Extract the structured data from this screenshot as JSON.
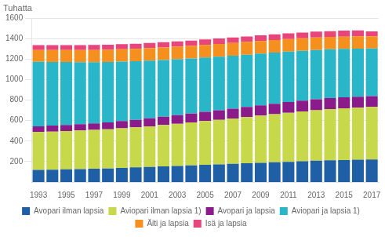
{
  "chart_data": {
    "type": "bar",
    "stacked": true,
    "ylabel": "Tuhatta",
    "categories": [
      "1993",
      null,
      "1995",
      null,
      "1997",
      null,
      "1999",
      null,
      "2001",
      null,
      "2003",
      null,
      "2005",
      null,
      "2007",
      null,
      "2009",
      null,
      "2011",
      null,
      "2013",
      null,
      "2015",
      null,
      "2017"
    ],
    "series": [
      {
        "name": "Avopari ilman lapsia",
        "color": "#1f5fa6",
        "values": [
          118,
          121,
          124,
          127,
          130,
          133,
          138,
          143,
          148,
          153,
          158,
          163,
          168,
          173,
          178,
          183,
          188,
          193,
          198,
          203,
          208,
          212,
          215,
          218,
          221
        ]
      },
      {
        "name": "Aviopari ilman lapsia 1)",
        "color": "#c8d84b",
        "values": [
          370,
          372,
          374,
          376,
          379,
          382,
          386,
          391,
          397,
          404,
          411,
          419,
          427,
          435,
          443,
          452,
          461,
          470,
          479,
          487,
          494,
          500,
          505,
          509,
          512
        ]
      },
      {
        "name": "Avopari ja lapsia",
        "color": "#8b1a8b",
        "values": [
          56,
          58,
          60,
          62,
          64,
          67,
          71,
          74,
          78,
          81,
          84,
          87,
          90,
          93,
          96,
          98,
          100,
          102,
          104,
          105,
          106,
          107,
          107,
          107,
          107
        ]
      },
      {
        "name": "Aviopari ja lapsia 1)",
        "color": "#29b6c8",
        "values": [
          630,
          622,
          614,
          606,
          598,
          590,
          581,
          572,
          563,
          554,
          546,
          538,
          531,
          524,
          517,
          511,
          505,
          499,
          493,
          487,
          482,
          477,
          473,
          469,
          465
        ]
      },
      {
        "name": "Äiti ja lapsia",
        "color": "#f5901e",
        "values": [
          116,
          117,
          118,
          118,
          119,
          120,
          120,
          121,
          122,
          122,
          123,
          123,
          123,
          124,
          124,
          124,
          124,
          123,
          123,
          122,
          122,
          121,
          120,
          120,
          119
        ]
      },
      {
        "name": "Isä ja lapsia",
        "color": "#e8457a",
        "values": [
          47,
          47,
          48,
          48,
          49,
          49,
          50,
          50,
          51,
          51,
          52,
          52,
          53,
          53,
          54,
          54,
          55,
          55,
          56,
          56,
          57,
          57,
          58,
          58,
          48
        ]
      }
    ],
    "ylim": [
      0,
      1600
    ],
    "yticks": [
      200,
      400,
      600,
      800,
      1000,
      1200,
      1400,
      1600
    ],
    "grid": true,
    "legend": "bottom"
  }
}
